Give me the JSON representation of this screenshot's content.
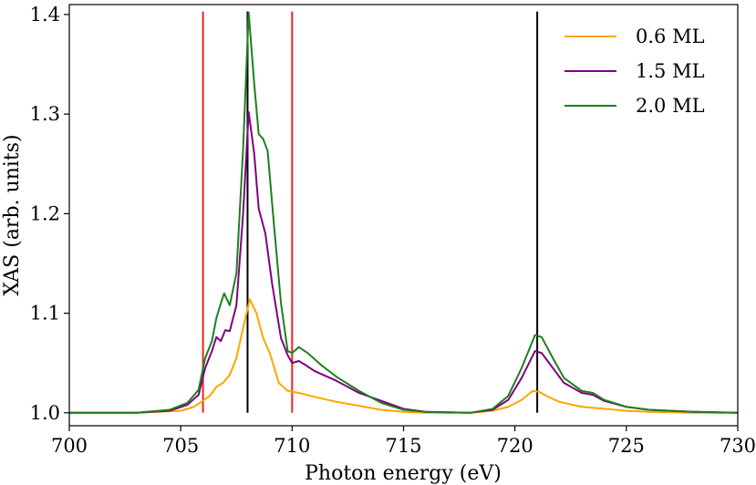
{
  "chart_data": {
    "type": "line",
    "xlabel": "Photon energy (eV)",
    "ylabel": "XAS (arb. units)",
    "xlim": [
      700,
      730
    ],
    "ylim": [
      0.987,
      1.41
    ],
    "xticks": [
      700,
      705,
      710,
      715,
      720,
      725,
      730
    ],
    "yticks": [
      1.0,
      1.1,
      1.2,
      1.3,
      1.4
    ],
    "xtick_labels": [
      "700",
      "705",
      "710",
      "715",
      "720",
      "725",
      "730"
    ],
    "ytick_labels": [
      "1.0",
      "1.1",
      "1.2",
      "1.3",
      "1.4"
    ],
    "legend_position": "top-right",
    "grid": false,
    "vertical_lines": [
      {
        "x": 706.0,
        "color": "#e8281e"
      },
      {
        "x": 710.0,
        "color": "#e8281e"
      },
      {
        "x": 708.0,
        "color": "#000000"
      },
      {
        "x": 721.0,
        "color": "#000000"
      }
    ],
    "series": [
      {
        "name": "0.6 ML",
        "color": "#ffa500",
        "points": [
          [
            700,
            1.0
          ],
          [
            703,
            1.0
          ],
          [
            705,
            1.002
          ],
          [
            705.6,
            1.006
          ],
          [
            706.0,
            1.012
          ],
          [
            706.3,
            1.017
          ],
          [
            706.6,
            1.026
          ],
          [
            706.9,
            1.03
          ],
          [
            707.2,
            1.038
          ],
          [
            707.5,
            1.055
          ],
          [
            707.8,
            1.085
          ],
          [
            708.1,
            1.114
          ],
          [
            708.4,
            1.1
          ],
          [
            708.7,
            1.075
          ],
          [
            709.0,
            1.06
          ],
          [
            709.4,
            1.03
          ],
          [
            709.8,
            1.022
          ],
          [
            710.3,
            1.02
          ],
          [
            711,
            1.016
          ],
          [
            712,
            1.011
          ],
          [
            713,
            1.007
          ],
          [
            714,
            1.003
          ],
          [
            715,
            1.001
          ],
          [
            716,
            1.0
          ],
          [
            718,
            1.0
          ],
          [
            719,
            1.002
          ],
          [
            719.7,
            1.006
          ],
          [
            720.3,
            1.013
          ],
          [
            720.8,
            1.022
          ],
          [
            721.1,
            1.021
          ],
          [
            721.5,
            1.016
          ],
          [
            722,
            1.011
          ],
          [
            723,
            1.006
          ],
          [
            724,
            1.004
          ],
          [
            725,
            1.002
          ],
          [
            726,
            1.001
          ],
          [
            728,
            1.0
          ],
          [
            730,
            1.0
          ]
        ]
      },
      {
        "name": "1.5 ML",
        "color": "#800080",
        "points": [
          [
            700,
            1.0
          ],
          [
            703,
            1.0
          ],
          [
            704.5,
            1.002
          ],
          [
            705.3,
            1.008
          ],
          [
            705.8,
            1.018
          ],
          [
            706.1,
            1.045
          ],
          [
            706.4,
            1.062
          ],
          [
            706.6,
            1.076
          ],
          [
            706.8,
            1.072
          ],
          [
            707.0,
            1.083
          ],
          [
            707.2,
            1.082
          ],
          [
            707.5,
            1.108
          ],
          [
            707.8,
            1.2
          ],
          [
            708.05,
            1.302
          ],
          [
            708.3,
            1.26
          ],
          [
            708.5,
            1.205
          ],
          [
            708.8,
            1.18
          ],
          [
            709.1,
            1.13
          ],
          [
            709.5,
            1.075
          ],
          [
            709.8,
            1.058
          ],
          [
            710.0,
            1.05
          ],
          [
            710.3,
            1.052
          ],
          [
            710.6,
            1.048
          ],
          [
            711,
            1.042
          ],
          [
            712,
            1.032
          ],
          [
            713,
            1.02
          ],
          [
            714,
            1.012
          ],
          [
            715,
            1.004
          ],
          [
            716,
            1.001
          ],
          [
            718,
            1.0
          ],
          [
            719,
            1.003
          ],
          [
            719.7,
            1.013
          ],
          [
            720.3,
            1.035
          ],
          [
            720.9,
            1.062
          ],
          [
            721.2,
            1.06
          ],
          [
            721.7,
            1.045
          ],
          [
            722.2,
            1.03
          ],
          [
            723,
            1.02
          ],
          [
            723.5,
            1.018
          ],
          [
            724,
            1.012
          ],
          [
            725,
            1.006
          ],
          [
            726,
            1.003
          ],
          [
            728,
            1.001
          ],
          [
            730,
            1.0
          ]
        ]
      },
      {
        "name": "2.0 ML",
        "color": "#1f7f1f",
        "points": [
          [
            700,
            1.0
          ],
          [
            703,
            1.0
          ],
          [
            704.5,
            1.003
          ],
          [
            705.3,
            1.01
          ],
          [
            705.8,
            1.023
          ],
          [
            706.1,
            1.055
          ],
          [
            706.4,
            1.072
          ],
          [
            706.6,
            1.095
          ],
          [
            706.8,
            1.11
          ],
          [
            706.95,
            1.12
          ],
          [
            707.2,
            1.108
          ],
          [
            707.5,
            1.14
          ],
          [
            707.8,
            1.265
          ],
          [
            708.05,
            1.402
          ],
          [
            708.3,
            1.33
          ],
          [
            708.5,
            1.28
          ],
          [
            708.7,
            1.275
          ],
          [
            708.9,
            1.263
          ],
          [
            709.2,
            1.185
          ],
          [
            709.5,
            1.11
          ],
          [
            709.8,
            1.062
          ],
          [
            710.0,
            1.06
          ],
          [
            710.3,
            1.066
          ],
          [
            710.7,
            1.06
          ],
          [
            711.3,
            1.048
          ],
          [
            712,
            1.036
          ],
          [
            713,
            1.022
          ],
          [
            714,
            1.01
          ],
          [
            715,
            1.003
          ],
          [
            716,
            1.001
          ],
          [
            718,
            1.0
          ],
          [
            719,
            1.004
          ],
          [
            719.7,
            1.017
          ],
          [
            720.3,
            1.045
          ],
          [
            720.9,
            1.078
          ],
          [
            721.2,
            1.076
          ],
          [
            721.7,
            1.055
          ],
          [
            722.2,
            1.035
          ],
          [
            723,
            1.022
          ],
          [
            723.5,
            1.02
          ],
          [
            724,
            1.013
          ],
          [
            725,
            1.006
          ],
          [
            726,
            1.003
          ],
          [
            728,
            1.001
          ],
          [
            730,
            1.0
          ]
        ]
      }
    ]
  }
}
